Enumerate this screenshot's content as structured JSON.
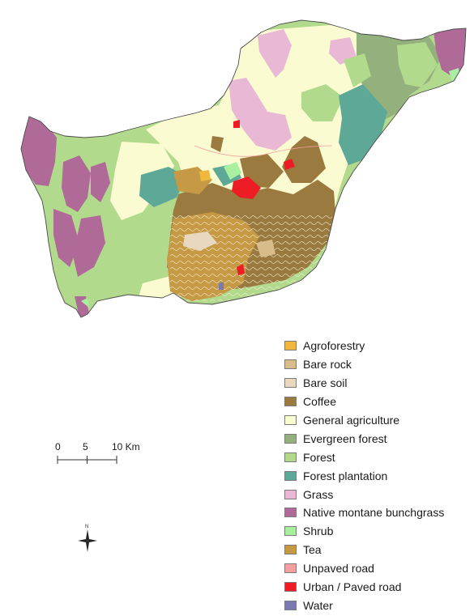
{
  "map": {
    "colors": {
      "agroforestry": "#f0b83c",
      "bare_rock": "#d8bc8a",
      "bare_soil": "#e8d8c0",
      "coffee": "#9a7a3e",
      "general_agriculture": "#fbfbd2",
      "evergreen_forest": "#94b07c",
      "forest": "#b2da8c",
      "forest_plantation": "#5ea898",
      "grass": "#e8b8d4",
      "native_montane_bunchgrass": "#b06a98",
      "shrub": "#a8f0a0",
      "tea": "#c69a44",
      "unpaved_road": "#f4a0a0",
      "urban_paved_road": "#ee1c24",
      "water": "#7a7ab0"
    }
  },
  "legend": {
    "items": [
      {
        "label": "Agroforestry",
        "color": "#f0b83c"
      },
      {
        "label": "Bare rock",
        "color": "#d8bc8a"
      },
      {
        "label": "Bare soil",
        "color": "#e8d8c0"
      },
      {
        "label": "Coffee",
        "color": "#9a7a3e"
      },
      {
        "label": "General agriculture",
        "color": "#fbfbd2"
      },
      {
        "label": "Evergreen forest",
        "color": "#94b07c"
      },
      {
        "label": "Forest",
        "color": "#b2da8c"
      },
      {
        "label": "Forest plantation",
        "color": "#5ea898"
      },
      {
        "label": "Grass",
        "color": "#e8b8d4"
      },
      {
        "label": "Native montane bunchgrass",
        "color": "#b06a98"
      },
      {
        "label": "Shrub",
        "color": "#a8f0a0"
      },
      {
        "label": "Tea",
        "color": "#c69a44"
      },
      {
        "label": "Unpaved road",
        "color": "#f4a0a0"
      },
      {
        "label": "Urban / Paved road",
        "color": "#ee1c24"
      },
      {
        "label": "Water",
        "color": "#7a7ab0"
      }
    ]
  },
  "scale": {
    "tick_0": "0",
    "tick_5": "5",
    "tick_10": "10 Km"
  },
  "north": {
    "label": "N",
    "icon": "north-arrow-icon"
  }
}
